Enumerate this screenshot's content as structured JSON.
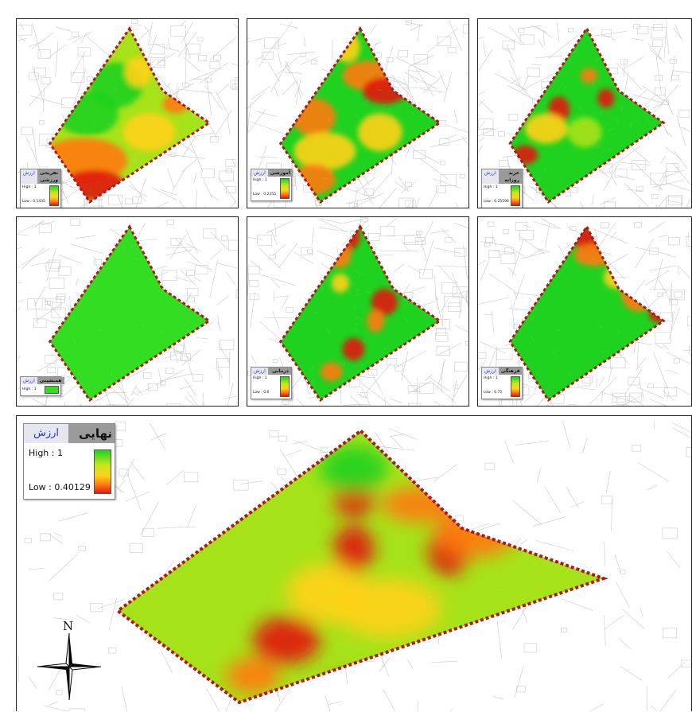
{
  "colors": {
    "high": "#1fd21f",
    "mid": "#ffd21a",
    "low": "#e01a12",
    "boundary": "#b01818",
    "streets": "#c9c9c9"
  },
  "maps": [
    {
      "id": "sport",
      "title": "تفریحی ورزشی",
      "subtitle": "ارزش",
      "high": "High : 1",
      "low": "Low : 0.1435",
      "ramp": true
    },
    {
      "id": "education",
      "title": "آموزشی",
      "subtitle": "ارزش",
      "high": "High : 1",
      "low": "Low : 0.2255",
      "ramp": true
    },
    {
      "id": "shopping",
      "title": "خرید روزانه",
      "subtitle": "ارزش",
      "high": "High : 1",
      "low": "Low : 0.25596",
      "ramp": true
    },
    {
      "id": "harmony",
      "title": "همنشینی",
      "subtitle": "ارزش",
      "high": "High : 1",
      "low": "",
      "ramp": false
    },
    {
      "id": "health",
      "title": "درمانی",
      "subtitle": "ارزش",
      "high": "High : 1",
      "low": "Low : 0.6",
      "ramp": true
    },
    {
      "id": "culture",
      "title": "فرهنگی",
      "subtitle": "ارزش",
      "high": "High : 1",
      "low": "Low : 0.75",
      "ramp": true
    }
  ],
  "final_map": {
    "title": "نهایی",
    "subtitle": "ارزش",
    "high": "High : 1",
    "low": "Low : 0.40129"
  },
  "north_arrow": {
    "label": "N"
  }
}
